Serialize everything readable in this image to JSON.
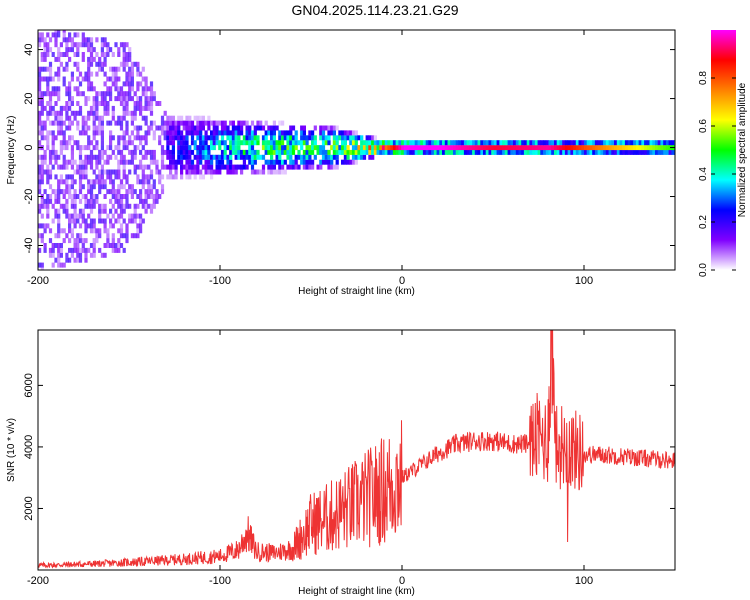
{
  "title": "GN04.2025.114.23.21.G29",
  "chart_data": [
    {
      "type": "heatmap",
      "xlabel": "Height of straight line (km)",
      "ylabel": "Frequency (Hz)",
      "xlim": [
        -200,
        150
      ],
      "ylim": [
        -50,
        48
      ],
      "xticks": [
        "-200",
        "-100",
        "0",
        "100"
      ],
      "xtick_values": [
        -200,
        -100,
        0,
        100
      ],
      "yticks": [
        "-40",
        "-20",
        "0",
        "20",
        "40"
      ],
      "ytick_values": [
        -40,
        -20,
        0,
        20,
        40
      ],
      "colorbar": {
        "label": "Normalized spectral amplitude",
        "range": [
          0,
          1
        ],
        "ticks": [
          "0.0",
          "0.2",
          "0.4",
          "0.6",
          "0.8"
        ],
        "tick_values": [
          0.0,
          0.2,
          0.4,
          0.6,
          0.8
        ],
        "colors": [
          "#ffffff",
          "#8000ff",
          "#0000ff",
          "#00ffff",
          "#00ff00",
          "#ffff00",
          "#ff8000",
          "#ff0000",
          "#ff00ff"
        ]
      },
      "profile": {
        "description_series": "peak band",
        "x": [
          -200,
          -150,
          -130,
          -100,
          -80,
          -60,
          -40,
          -25,
          -10,
          0,
          20,
          50,
          80,
          100,
          150
        ],
        "band_halfwidth_hz": [
          48,
          40,
          14,
          12,
          11,
          10,
          9,
          6,
          3,
          2.5,
          2.5,
          2.5,
          2.5,
          2.5,
          3
        ],
        "peak_amplitude": [
          0.05,
          0.08,
          0.2,
          0.35,
          0.45,
          0.45,
          0.45,
          0.55,
          0.75,
          1.0,
          1.0,
          0.9,
          0.95,
          0.8,
          0.5
        ]
      }
    },
    {
      "type": "line",
      "xlabel": "Height of straight line (km)",
      "ylabel": "SNR (10 * v/v)",
      "xlim": [
        -200,
        150
      ],
      "ylim": [
        0,
        7800
      ],
      "xticks": [
        "-200",
        "-100",
        "0",
        "100"
      ],
      "xtick_values": [
        -200,
        -100,
        0,
        100
      ],
      "yticks": [
        "2000",
        "4000",
        "6000"
      ],
      "ytick_values": [
        2000,
        4000,
        6000
      ],
      "color": "#ee3333",
      "series": [
        {
          "x": [
            -200,
            -180,
            -160,
            -140,
            -120,
            -100,
            -90,
            -85,
            -80,
            -70,
            -60,
            -50,
            -40,
            -30,
            -20,
            -10,
            0,
            10,
            20,
            30,
            40,
            50,
            60,
            70,
            75,
            80,
            82,
            85,
            90,
            95,
            100,
            110,
            120,
            130,
            140,
            150
          ],
          "values": [
            150,
            180,
            220,
            280,
            350,
            450,
            650,
            1200,
            600,
            550,
            700,
            1500,
            1700,
            2000,
            2300,
            2600,
            3000,
            3400,
            3800,
            4100,
            4200,
            4200,
            4100,
            4100,
            4300,
            4200,
            7500,
            4000,
            4100,
            3900,
            3750,
            3750,
            3700,
            3650,
            3600,
            3550
          ]
        }
      ]
    }
  ]
}
